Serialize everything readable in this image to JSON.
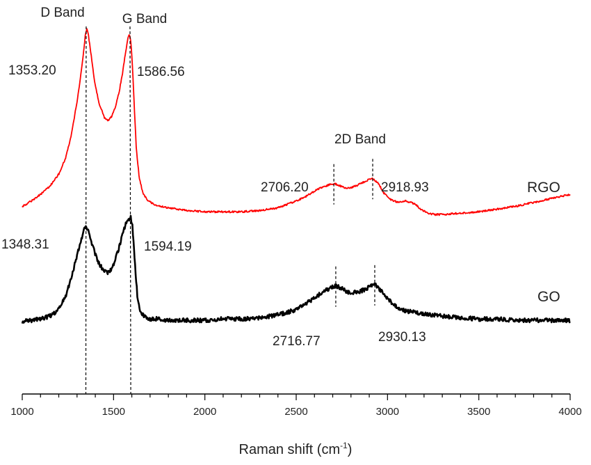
{
  "chart_data": {
    "type": "line",
    "xlabel": "Raman shift (cm",
    "xlabel_sup": "-1",
    "xlabel_close": ")",
    "xlim": [
      1000,
      4000
    ],
    "x_ticks": [
      1000,
      1500,
      2000,
      2500,
      3000,
      3500,
      4000
    ],
    "x_tick_labels": [
      "1000",
      "1500",
      "2000",
      "2500",
      "3000",
      "3500",
      "4000"
    ],
    "y_ticks": "none",
    "grid": false,
    "series": [
      {
        "name": "RGO",
        "color": "#ff0000",
        "x": [
          1000,
          1050,
          1100,
          1150,
          1200,
          1240,
          1270,
          1300,
          1320,
          1335,
          1345,
          1353,
          1362,
          1375,
          1395,
          1420,
          1450,
          1470,
          1490,
          1510,
          1530,
          1550,
          1565,
          1578,
          1587,
          1596,
          1605,
          1615,
          1625,
          1640,
          1660,
          1690,
          1730,
          1800,
          1900,
          2000,
          2100,
          2200,
          2300,
          2400,
          2500,
          2560,
          2620,
          2680,
          2706,
          2730,
          2760,
          2800,
          2840,
          2880,
          2918,
          2950,
          2980,
          3020,
          3060,
          3100,
          3150,
          3180,
          3220,
          3260,
          3300,
          3400,
          3500,
          3600,
          3700,
          3800,
          3900,
          4000
        ],
        "y": [
          0.08,
          0.12,
          0.17,
          0.23,
          0.32,
          0.45,
          0.62,
          0.86,
          1.05,
          1.22,
          1.35,
          1.4,
          1.36,
          1.23,
          1.02,
          0.85,
          0.74,
          0.72,
          0.75,
          0.82,
          0.93,
          1.08,
          1.22,
          1.33,
          1.36,
          1.29,
          1.08,
          0.78,
          0.5,
          0.3,
          0.18,
          0.12,
          0.09,
          0.07,
          0.05,
          0.04,
          0.04,
          0.04,
          0.05,
          0.07,
          0.12,
          0.16,
          0.21,
          0.24,
          0.25,
          0.24,
          0.22,
          0.22,
          0.24,
          0.27,
          0.29,
          0.25,
          0.18,
          0.13,
          0.11,
          0.12,
          0.1,
          0.06,
          0.03,
          0.02,
          0.02,
          0.03,
          0.04,
          0.06,
          0.08,
          0.11,
          0.14,
          0.17
        ]
      },
      {
        "name": "GO",
        "color": "#000000",
        "x": [
          1000,
          1050,
          1100,
          1150,
          1200,
          1240,
          1270,
          1300,
          1320,
          1335,
          1348,
          1360,
          1375,
          1395,
          1420,
          1450,
          1470,
          1490,
          1510,
          1530,
          1550,
          1565,
          1578,
          1587,
          1594,
          1602,
          1610,
          1620,
          1630,
          1645,
          1670,
          1700,
          1750,
          1800,
          1900,
          2000,
          2100,
          2200,
          2300,
          2400,
          2500,
          2560,
          2620,
          2680,
          2717,
          2750,
          2790,
          2830,
          2870,
          2910,
          2930,
          2960,
          3000,
          3050,
          3100,
          3150,
          3200,
          3250,
          3300,
          3400,
          3500,
          3600,
          3700,
          3800,
          3900,
          4000
        ],
        "y": [
          0.0,
          0.01,
          0.02,
          0.04,
          0.09,
          0.2,
          0.34,
          0.5,
          0.6,
          0.68,
          0.72,
          0.7,
          0.62,
          0.53,
          0.44,
          0.38,
          0.37,
          0.4,
          0.47,
          0.56,
          0.66,
          0.73,
          0.76,
          0.78,
          0.79,
          0.74,
          0.6,
          0.38,
          0.2,
          0.08,
          0.04,
          0.02,
          0.02,
          0.01,
          0.01,
          0.01,
          0.02,
          0.02,
          0.03,
          0.05,
          0.09,
          0.14,
          0.2,
          0.25,
          0.27,
          0.25,
          0.22,
          0.22,
          0.24,
          0.27,
          0.28,
          0.24,
          0.17,
          0.11,
          0.08,
          0.07,
          0.06,
          0.05,
          0.04,
          0.03,
          0.02,
          0.02,
          0.01,
          0.01,
          0.01,
          0.01
        ]
      }
    ],
    "series_labels": [
      {
        "text": "RGO",
        "series": "RGO",
        "x": 3850,
        "y": 0.4
      },
      {
        "text": "GO",
        "series": "GO",
        "x": 3880,
        "y": 0.41
      }
    ],
    "band_labels": [
      {
        "text": "D Band",
        "x": 1350
      },
      {
        "text": "G Band",
        "x": 1590
      },
      {
        "text": "2D Band",
        "x": 2820
      }
    ],
    "peak_annotations": [
      {
        "text": "1353.20",
        "series": "RGO",
        "x": 1353.2
      },
      {
        "text": "1586.56",
        "series": "RGO",
        "x": 1586.56
      },
      {
        "text": "2706.20",
        "series": "RGO",
        "x": 2706.2
      },
      {
        "text": "2918.93",
        "series": "RGO",
        "x": 2918.93
      },
      {
        "text": "1348.31",
        "series": "GO",
        "x": 1348.31
      },
      {
        "text": "1594.19",
        "series": "GO",
        "x": 1594.19
      },
      {
        "text": "2716.77",
        "series": "GO",
        "x": 2716.77
      },
      {
        "text": "2930.13",
        "series": "GO",
        "x": 2930.13
      }
    ]
  }
}
